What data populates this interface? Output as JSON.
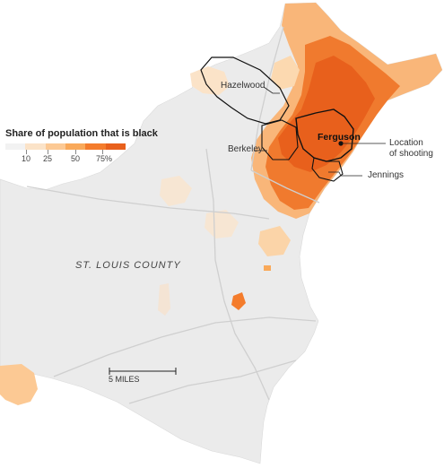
{
  "legend": {
    "title": "Share of population that is black",
    "ticks": [
      "10",
      "25",
      "50",
      "75%"
    ],
    "colors": [
      "#f2f2f2",
      "#fbe3c8",
      "#fcc994",
      "#f9a95a",
      "#f47c2c",
      "#e8601c"
    ]
  },
  "places": {
    "hazelwood": "Hazelwood",
    "ferguson": "Ferguson",
    "berkeley": "Berkeley",
    "location_line1": "Location",
    "location_line2": "of shooting",
    "jennings": "Jennings"
  },
  "county_label": "ST. LOUIS COUNTY",
  "scale": {
    "label": "5 MILES"
  },
  "colors": {
    "land": "#ebebeb",
    "light_orange": "#fcd9b0",
    "mid_orange": "#f9a95a",
    "dark_orange": "#ef6a1f",
    "road": "#cfcfcf",
    "border": "#111111"
  }
}
